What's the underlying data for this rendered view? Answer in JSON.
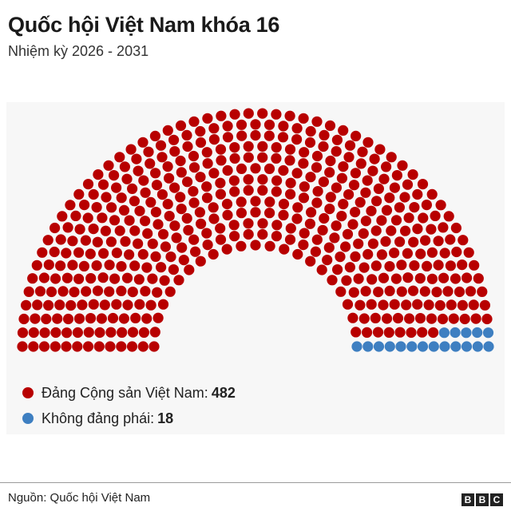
{
  "header": {
    "title": "Quốc hội Việt Nam khóa 16",
    "subtitle": "Nhiệm kỳ 2026 - 2031"
  },
  "chart_data": {
    "type": "parliament",
    "total_seats": 500,
    "series": [
      {
        "name": "Đảng Cộng sản Việt Nam",
        "value": 482,
        "color": "#b80000"
      },
      {
        "name": "Không đảng phái",
        "value": 18,
        "color": "#3e7fc1"
      }
    ],
    "legend_separator": ":"
  },
  "footer": {
    "source": "Nguồn: Quốc hội Việt Nam",
    "logo_letters": [
      "B",
      "B",
      "C"
    ]
  }
}
